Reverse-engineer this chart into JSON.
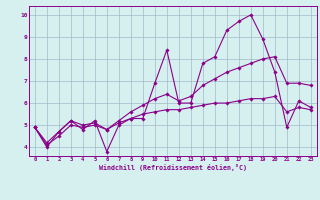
{
  "xlabel": "Windchill (Refroidissement éolien,°C)",
  "background_color": "#d6f0f0",
  "line_color": "#8b008b",
  "xlim": [
    -0.5,
    23.5
  ],
  "ylim": [
    3.6,
    10.4
  ],
  "xticks": [
    0,
    1,
    2,
    3,
    4,
    5,
    6,
    7,
    8,
    9,
    10,
    11,
    12,
    13,
    14,
    15,
    16,
    17,
    18,
    19,
    20,
    21,
    22,
    23
  ],
  "yticks": [
    4,
    5,
    6,
    7,
    8,
    9,
    10
  ],
  "grid_color": "#a0b8c8",
  "series1": [
    4.9,
    4.0,
    4.7,
    5.2,
    4.8,
    5.2,
    3.8,
    5.0,
    5.3,
    5.3,
    6.9,
    8.4,
    6.0,
    6.0,
    7.8,
    8.1,
    9.3,
    9.7,
    10.0,
    8.9,
    7.4,
    4.9,
    6.1,
    5.8
  ],
  "series2": [
    4.9,
    4.2,
    4.7,
    5.2,
    5.0,
    5.1,
    4.8,
    5.2,
    5.6,
    5.9,
    6.2,
    6.4,
    6.1,
    6.3,
    6.8,
    7.1,
    7.4,
    7.6,
    7.8,
    8.0,
    8.1,
    6.9,
    6.9,
    6.8
  ],
  "series3": [
    4.9,
    4.1,
    4.5,
    5.0,
    4.9,
    5.0,
    4.8,
    5.1,
    5.3,
    5.5,
    5.6,
    5.7,
    5.7,
    5.8,
    5.9,
    6.0,
    6.0,
    6.1,
    6.2,
    6.2,
    6.3,
    5.6,
    5.8,
    5.7
  ]
}
